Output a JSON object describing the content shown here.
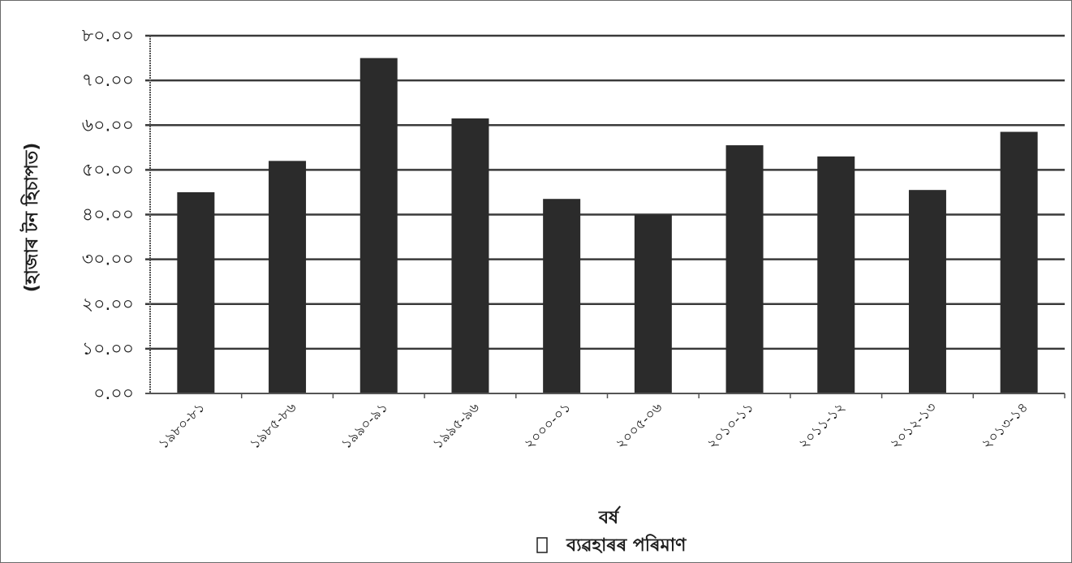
{
  "chart_data": {
    "type": "bar",
    "title": "",
    "xlabel": "বৰ্ষ",
    "ylabel": "(হাজাৰ টন হিচাপত)",
    "ylim": [
      0,
      80
    ],
    "yticks": [
      "০.০০",
      "১০.০০",
      "২০.০০",
      "৩০.০০",
      "৪০.০০",
      "৫০.০০",
      "৬০.০০",
      "৭০.০০",
      "৮০.০০"
    ],
    "categories": [
      "১৯৮০-৮১",
      "১৯৮৫-৮৬",
      "১৯৯০-৯১",
      "১৯৯৫-৯৬",
      "২০০০-০১",
      "২০০৫-০৬",
      "২০১০-১১",
      "২০১১-১২",
      "২০১২-১৩",
      "২০১৩-১৪"
    ],
    "series": [
      {
        "name": "ব্যৱহাৰৰ পৰিমাণ",
        "values": [
          45.0,
          52.0,
          75.0,
          61.5,
          43.5,
          40.0,
          55.5,
          53.0,
          45.5,
          58.5
        ]
      }
    ],
    "grid": true,
    "legend_position": "bottom-center",
    "colors": {
      "bar": "#2b2b2b",
      "grid": "#3a3a3a",
      "axis": "#555555",
      "text": "#1e1e1e"
    }
  }
}
